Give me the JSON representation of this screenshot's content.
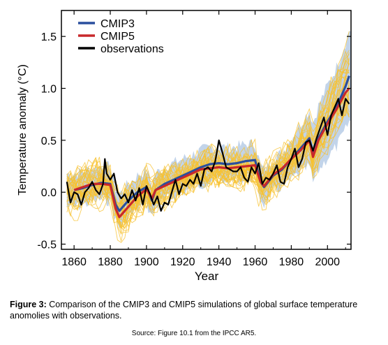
{
  "chart_data": {
    "type": "line",
    "xlabel": "Year",
    "ylabel": "Temperature anomaly (°C)",
    "xlim": [
      1853,
      2013
    ],
    "ylim": [
      -0.55,
      1.75
    ],
    "xticks": [
      1860,
      1880,
      1900,
      1920,
      1940,
      1960,
      1980,
      2000
    ],
    "yticks": [
      -0.5,
      0.0,
      0.5,
      1.0,
      1.5
    ],
    "ytick_labels": [
      "-0.5",
      "0.0",
      "0.5",
      "1.0",
      "1.5"
    ],
    "legend_position": "top-left",
    "colors": {
      "cmip3": "#2a4f9e",
      "cmip5": "#c8282b",
      "observations": "#000000",
      "cmip3_spread": "#b7cde6",
      "cmip5_members": "#f7c22f"
    },
    "series": [
      {
        "name": "CMIP3",
        "color": "#2a4f9e",
        "x": [
          1860,
          1865,
          1870,
          1875,
          1880,
          1883,
          1885,
          1890,
          1895,
          1900,
          1903,
          1905,
          1910,
          1915,
          1920,
          1925,
          1930,
          1935,
          1940,
          1945,
          1950,
          1955,
          1960,
          1963,
          1965,
          1970,
          1975,
          1980,
          1985,
          1990,
          1992,
          1995,
          2000,
          2005,
          2010,
          2012
        ],
        "y": [
          0.02,
          0.04,
          0.07,
          0.09,
          0.08,
          -0.12,
          -0.18,
          -0.08,
          0.0,
          0.05,
          -0.08,
          0.02,
          0.08,
          0.12,
          0.16,
          0.2,
          0.24,
          0.27,
          0.28,
          0.27,
          0.28,
          0.3,
          0.31,
          0.1,
          0.05,
          0.16,
          0.22,
          0.32,
          0.42,
          0.52,
          0.38,
          0.52,
          0.68,
          0.82,
          1.02,
          1.12
        ]
      },
      {
        "name": "CMIP5",
        "color": "#c8282b",
        "x": [
          1860,
          1865,
          1870,
          1875,
          1880,
          1883,
          1885,
          1890,
          1895,
          1900,
          1903,
          1905,
          1910,
          1915,
          1920,
          1925,
          1930,
          1935,
          1940,
          1945,
          1950,
          1955,
          1960,
          1963,
          1965,
          1970,
          1975,
          1980,
          1985,
          1990,
          1992,
          1995,
          2000,
          2005,
          2010,
          2012
        ],
        "y": [
          0.02,
          0.05,
          0.08,
          0.08,
          0.07,
          -0.16,
          -0.24,
          -0.14,
          -0.04,
          0.03,
          -0.06,
          0.02,
          0.06,
          0.1,
          0.14,
          0.18,
          0.22,
          0.23,
          0.24,
          0.23,
          0.24,
          0.25,
          0.26,
          0.1,
          0.06,
          0.17,
          0.23,
          0.32,
          0.4,
          0.5,
          0.34,
          0.5,
          0.66,
          0.8,
          0.96,
          1.0
        ]
      },
      {
        "name": "observations",
        "color": "#000000",
        "x": [
          1856,
          1858,
          1860,
          1862,
          1864,
          1866,
          1868,
          1870,
          1872,
          1874,
          1876,
          1877,
          1878,
          1880,
          1882,
          1884,
          1886,
          1888,
          1890,
          1892,
          1894,
          1896,
          1898,
          1900,
          1902,
          1904,
          1906,
          1908,
          1910,
          1912,
          1914,
          1916,
          1918,
          1920,
          1922,
          1924,
          1926,
          1928,
          1930,
          1932,
          1934,
          1936,
          1938,
          1940,
          1942,
          1944,
          1946,
          1948,
          1950,
          1952,
          1954,
          1956,
          1958,
          1960,
          1962,
          1964,
          1966,
          1968,
          1970,
          1972,
          1974,
          1976,
          1978,
          1980,
          1982,
          1984,
          1986,
          1988,
          1990,
          1992,
          1994,
          1996,
          1998,
          2000,
          2002,
          2004,
          2006,
          2008,
          2010,
          2012
        ],
        "y": [
          0.1,
          -0.1,
          0.0,
          -0.02,
          -0.12,
          0.0,
          0.04,
          0.1,
          0.02,
          -0.02,
          0.08,
          0.32,
          0.18,
          0.12,
          0.18,
          0.0,
          -0.06,
          -0.02,
          -0.1,
          0.02,
          -0.08,
          0.04,
          -0.12,
          0.06,
          -0.02,
          -0.12,
          -0.04,
          -0.18,
          -0.1,
          -0.12,
          0.0,
          0.12,
          -0.02,
          0.08,
          0.06,
          0.12,
          0.08,
          0.18,
          0.06,
          0.22,
          0.24,
          0.2,
          0.3,
          0.5,
          0.38,
          0.24,
          0.22,
          0.2,
          0.2,
          0.24,
          0.14,
          0.1,
          0.24,
          0.18,
          0.28,
          0.08,
          0.14,
          0.12,
          0.18,
          0.26,
          0.1,
          0.08,
          0.24,
          0.32,
          0.42,
          0.24,
          0.32,
          0.48,
          0.5,
          0.4,
          0.52,
          0.62,
          0.72,
          0.55,
          0.74,
          0.82,
          0.9,
          0.74,
          0.9,
          0.85
        ]
      }
    ]
  },
  "legend": {
    "items": [
      "CMIP3",
      "CMIP5",
      "observations"
    ]
  },
  "caption": {
    "label": "Figure 3:",
    "text": "Comparison of the CMIP3 and CMIP5 simulations of global surface temperature anomolies with observations.",
    "source": "Source: Figure 10.1 from the IPCC AR5."
  }
}
